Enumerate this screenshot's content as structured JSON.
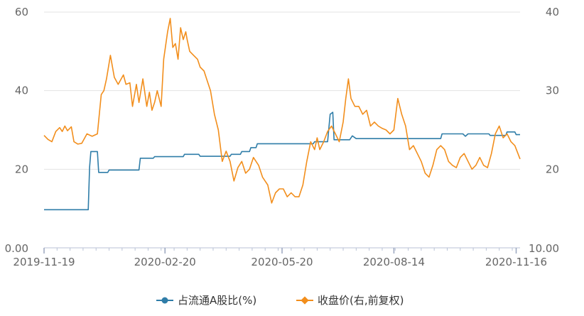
{
  "chart_data": {
    "type": "line",
    "x_range": [
      "2019-11-19",
      "2020-11-19"
    ],
    "x_tick_labels": [
      "2019-11-19",
      "2020-02-20",
      "2020-05-20",
      "2020-08-14",
      "2020-11-16"
    ],
    "y_left": {
      "ticks": [
        "0.00",
        "20",
        "40",
        "60"
      ],
      "range": [
        0,
        60
      ]
    },
    "y_right": {
      "ticks": [
        "10.00",
        "20",
        "30",
        "40"
      ],
      "range": [
        10,
        40
      ]
    },
    "grid": true,
    "legend_position": "bottom",
    "series": [
      {
        "name": "占流通A股比(%)",
        "axis": "left",
        "color": "#2f7da8",
        "points": [
          [
            "2019-11-19",
            9.7
          ],
          [
            "2019-12-23",
            9.7
          ],
          [
            "2019-12-24",
            20.5
          ],
          [
            "2019-12-25",
            24.5
          ],
          [
            "2019-12-30",
            24.5
          ],
          [
            "2019-12-31",
            19.2
          ],
          [
            "2020-01-07",
            19.2
          ],
          [
            "2020-01-08",
            19.8
          ],
          [
            "2020-01-31",
            19.8
          ],
          [
            "2020-02-01",
            22.8
          ],
          [
            "2020-02-11",
            22.8
          ],
          [
            "2020-02-12",
            23.2
          ],
          [
            "2020-03-05",
            23.2
          ],
          [
            "2020-03-06",
            23.8
          ],
          [
            "2020-03-17",
            23.8
          ],
          [
            "2020-03-18",
            23.3
          ],
          [
            "2020-04-10",
            23.3
          ],
          [
            "2020-04-11",
            23.8
          ],
          [
            "2020-04-18",
            23.8
          ],
          [
            "2020-04-19",
            24.5
          ],
          [
            "2020-04-25",
            24.5
          ],
          [
            "2020-04-26",
            25.5
          ],
          [
            "2020-04-30",
            25.5
          ],
          [
            "2020-05-01",
            26.5
          ],
          [
            "2020-06-13",
            26.5
          ],
          [
            "2020-06-14",
            27.0
          ],
          [
            "2020-06-24",
            27.0
          ],
          [
            "2020-06-26",
            34.0
          ],
          [
            "2020-06-28",
            34.5
          ],
          [
            "2020-06-29",
            27.5
          ],
          [
            "2020-07-11",
            27.5
          ],
          [
            "2020-07-13",
            28.5
          ],
          [
            "2020-07-16",
            27.8
          ],
          [
            "2020-09-19",
            27.8
          ],
          [
            "2020-09-20",
            29.0
          ],
          [
            "2020-10-06",
            29.0
          ],
          [
            "2020-10-08",
            28.4
          ],
          [
            "2020-10-10",
            29.0
          ],
          [
            "2020-10-26",
            29.0
          ],
          [
            "2020-10-27",
            28.6
          ],
          [
            "2020-11-08",
            28.6
          ],
          [
            "2020-11-09",
            29.5
          ],
          [
            "2020-11-15",
            29.5
          ],
          [
            "2020-11-16",
            28.8
          ],
          [
            "2020-11-19",
            28.8
          ]
        ]
      },
      {
        "name": "收盘价(右,前复权)",
        "axis": "right",
        "color": "#f28e1c",
        "points": [
          [
            "2019-11-19",
            24.3
          ],
          [
            "2019-11-22",
            23.8
          ],
          [
            "2019-11-25",
            23.5
          ],
          [
            "2019-11-28",
            24.8
          ],
          [
            "2019-12-01",
            25.3
          ],
          [
            "2019-12-03",
            24.8
          ],
          [
            "2019-12-05",
            25.5
          ],
          [
            "2019-12-07",
            24.9
          ],
          [
            "2019-12-10",
            25.4
          ],
          [
            "2019-12-12",
            23.5
          ],
          [
            "2019-12-15",
            23.2
          ],
          [
            "2019-12-18",
            23.3
          ],
          [
            "2019-12-22",
            24.5
          ],
          [
            "2019-12-26",
            24.2
          ],
          [
            "2019-12-30",
            24.5
          ],
          [
            "2020-01-02",
            29.5
          ],
          [
            "2020-01-04",
            30.0
          ],
          [
            "2020-01-06",
            31.5
          ],
          [
            "2020-01-09",
            34.5
          ],
          [
            "2020-01-12",
            31.7
          ],
          [
            "2020-01-15",
            30.8
          ],
          [
            "2020-01-19",
            32.0
          ],
          [
            "2020-01-21",
            30.8
          ],
          [
            "2020-01-24",
            31.0
          ],
          [
            "2020-01-26",
            28.0
          ],
          [
            "2020-01-29",
            30.8
          ],
          [
            "2020-01-31",
            28.5
          ],
          [
            "2020-02-03",
            31.5
          ],
          [
            "2020-02-06",
            28.0
          ],
          [
            "2020-02-08",
            29.8
          ],
          [
            "2020-02-10",
            27.5
          ],
          [
            "2020-02-12",
            28.5
          ],
          [
            "2020-02-14",
            30.0
          ],
          [
            "2020-02-17",
            28.0
          ],
          [
            "2020-02-19",
            34.0
          ],
          [
            "2020-02-22",
            37.5
          ],
          [
            "2020-02-24",
            39.2
          ],
          [
            "2020-02-26",
            35.5
          ],
          [
            "2020-02-28",
            36.0
          ],
          [
            "2020-03-01",
            34.0
          ],
          [
            "2020-03-03",
            38.0
          ],
          [
            "2020-03-05",
            36.5
          ],
          [
            "2020-03-07",
            37.5
          ],
          [
            "2020-03-08",
            36.5
          ],
          [
            "2020-03-10",
            35.0
          ],
          [
            "2020-03-13",
            34.5
          ],
          [
            "2020-03-16",
            34.0
          ],
          [
            "2020-03-18",
            33.0
          ],
          [
            "2020-03-21",
            32.5
          ],
          [
            "2020-03-23",
            31.5
          ],
          [
            "2020-03-26",
            30.0
          ],
          [
            "2020-03-29",
            27.0
          ],
          [
            "2020-04-01",
            25.0
          ],
          [
            "2020-04-04",
            21.0
          ],
          [
            "2020-04-07",
            22.3
          ],
          [
            "2020-04-10",
            21.0
          ],
          [
            "2020-04-13",
            18.5
          ],
          [
            "2020-04-16",
            20.2
          ],
          [
            "2020-04-19",
            21.0
          ],
          [
            "2020-04-22",
            19.5
          ],
          [
            "2020-04-25",
            20.0
          ],
          [
            "2020-04-28",
            21.5
          ],
          [
            "2020-05-02",
            20.5
          ],
          [
            "2020-05-05",
            19.0
          ],
          [
            "2020-05-09",
            18.0
          ],
          [
            "2020-05-12",
            15.7
          ],
          [
            "2020-05-15",
            17.0
          ],
          [
            "2020-05-18",
            17.5
          ],
          [
            "2020-05-21",
            17.5
          ],
          [
            "2020-05-24",
            16.5
          ],
          [
            "2020-05-27",
            17.0
          ],
          [
            "2020-05-30",
            16.5
          ],
          [
            "2020-06-02",
            16.5
          ],
          [
            "2020-06-05",
            18.0
          ],
          [
            "2020-06-08",
            21.0
          ],
          [
            "2020-06-11",
            23.5
          ],
          [
            "2020-06-14",
            22.5
          ],
          [
            "2020-06-16",
            24.0
          ],
          [
            "2020-06-18",
            22.5
          ],
          [
            "2020-06-21",
            23.5
          ],
          [
            "2020-06-24",
            24.8
          ],
          [
            "2020-06-27",
            25.5
          ],
          [
            "2020-06-30",
            24.5
          ],
          [
            "2020-07-03",
            23.5
          ],
          [
            "2020-07-06",
            26.0
          ],
          [
            "2020-07-08",
            29.0
          ],
          [
            "2020-07-10",
            31.5
          ],
          [
            "2020-07-12",
            29.0
          ],
          [
            "2020-07-15",
            28.0
          ],
          [
            "2020-07-18",
            28.0
          ],
          [
            "2020-07-21",
            27.0
          ],
          [
            "2020-07-24",
            27.5
          ],
          [
            "2020-07-27",
            25.5
          ],
          [
            "2020-07-30",
            26.0
          ],
          [
            "2020-08-02",
            25.5
          ],
          [
            "2020-08-05",
            25.2
          ],
          [
            "2020-08-08",
            25.0
          ],
          [
            "2020-08-11",
            24.5
          ],
          [
            "2020-08-14",
            25.0
          ],
          [
            "2020-08-17",
            29.0
          ],
          [
            "2020-08-20",
            27.0
          ],
          [
            "2020-08-23",
            25.5
          ],
          [
            "2020-08-26",
            22.5
          ],
          [
            "2020-08-29",
            23.0
          ],
          [
            "2020-09-01",
            22.0
          ],
          [
            "2020-09-04",
            21.0
          ],
          [
            "2020-09-07",
            19.5
          ],
          [
            "2020-09-10",
            19.0
          ],
          [
            "2020-09-13",
            20.5
          ],
          [
            "2020-09-16",
            22.5
          ],
          [
            "2020-09-19",
            23.0
          ],
          [
            "2020-09-22",
            22.5
          ],
          [
            "2020-09-25",
            21.0
          ],
          [
            "2020-09-28",
            20.5
          ],
          [
            "2020-10-01",
            20.2
          ],
          [
            "2020-10-04",
            21.5
          ],
          [
            "2020-10-07",
            22.0
          ],
          [
            "2020-10-10",
            21.0
          ],
          [
            "2020-10-13",
            20.0
          ],
          [
            "2020-10-16",
            20.5
          ],
          [
            "2020-10-19",
            21.5
          ],
          [
            "2020-10-22",
            20.5
          ],
          [
            "2020-10-25",
            20.2
          ],
          [
            "2020-10-28",
            22.0
          ],
          [
            "2020-10-31",
            24.5
          ],
          [
            "2020-11-03",
            25.5
          ],
          [
            "2020-11-06",
            24.0
          ],
          [
            "2020-11-09",
            24.5
          ],
          [
            "2020-11-12",
            23.5
          ],
          [
            "2020-11-15",
            23.0
          ],
          [
            "2020-11-19",
            21.3
          ]
        ]
      }
    ]
  }
}
